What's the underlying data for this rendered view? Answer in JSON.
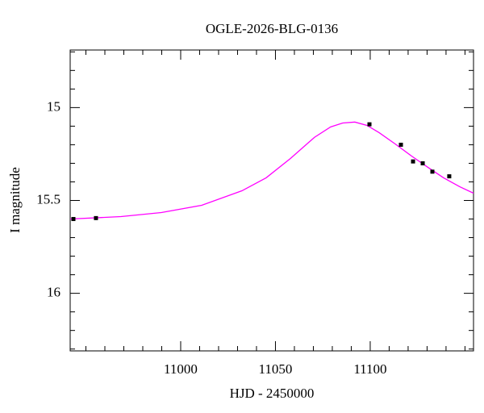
{
  "chart_data": {
    "type": "line",
    "title": "OGLE-2026-BLG-0136",
    "x_label": "HJD - 2450000",
    "y_label": "I magnitude",
    "xlim": [
      10941.7,
      11154.5
    ],
    "ylim": [
      14.69,
      16.31
    ],
    "y_inverted": true,
    "xticks": [
      11000,
      11050,
      11100
    ],
    "yticks": [
      15,
      15.5,
      16
    ],
    "xminorticks": [
      10950,
      10960,
      10970,
      10980,
      10990,
      11010,
      11020,
      11030,
      11040,
      11060,
      11070,
      11080,
      11090,
      11110,
      11120,
      11130,
      11140,
      11150
    ],
    "yminorticks": [
      14.7,
      14.8,
      14.9,
      15.1,
      15.2,
      15.3,
      15.4,
      15.6,
      15.7,
      15.8,
      15.9,
      16.1,
      16.2,
      16.3
    ],
    "model": {
      "color": "#ff00ff",
      "x": [
        10941.7,
        10968.5,
        10989.8,
        11011.1,
        11032.3,
        11045.1,
        11057.9,
        11070.6,
        11079.1,
        11085.5,
        11091.9,
        11098.3,
        11104.7,
        11113.2,
        11121.7,
        11130.2,
        11138.7,
        11147.2,
        11154.5
      ],
      "values": [
        15.6,
        15.587,
        15.565,
        15.526,
        15.448,
        15.378,
        15.274,
        15.16,
        15.104,
        15.083,
        15.078,
        15.096,
        15.135,
        15.196,
        15.26,
        15.32,
        15.378,
        15.426,
        15.461
      ]
    },
    "points": {
      "color": "#000000",
      "x": [
        10943.4,
        10955.3,
        11099.6,
        11116.2,
        11122.6,
        11127.7,
        11132.8,
        11141.7
      ],
      "values": [
        15.6,
        15.595,
        15.09,
        15.2,
        15.29,
        15.3,
        15.345,
        15.37
      ]
    }
  }
}
